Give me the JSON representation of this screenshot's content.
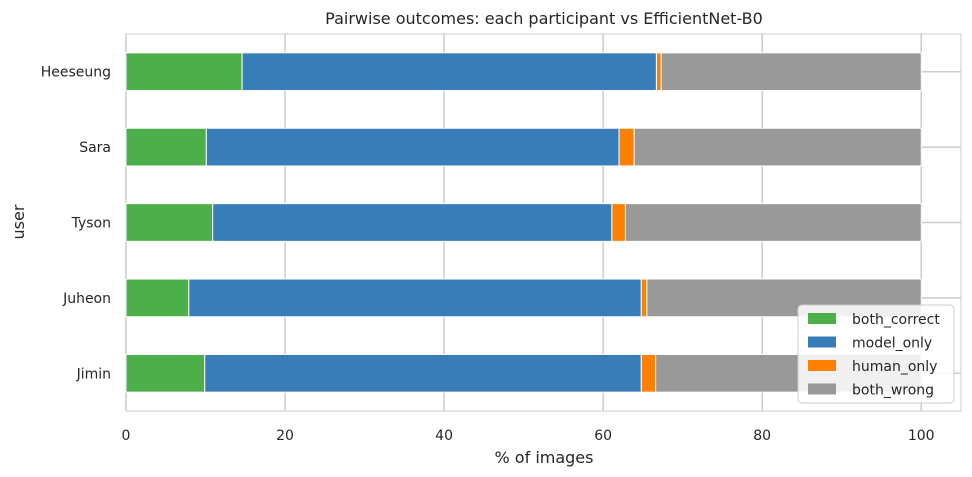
{
  "chart_data": {
    "type": "bar",
    "orientation": "horizontal",
    "stacked": true,
    "title": "Pairwise outcomes: each participant vs EfficientNet-B0",
    "xlabel": "% of images",
    "ylabel": "user",
    "xlim": [
      0,
      105
    ],
    "xticks": [
      0,
      20,
      40,
      60,
      80,
      100
    ],
    "grid": true,
    "legend_position": "bottom-right",
    "categories": [
      "Jimin",
      "Juheon",
      "Tyson",
      "Sara",
      "Heeseung"
    ],
    "series": [
      {
        "name": "both_correct",
        "color": "#4daf4a",
        "values": [
          9.9,
          7.9,
          10.9,
          10.1,
          14.6
        ]
      },
      {
        "name": "model_only",
        "color": "#377eb8",
        "values": [
          54.9,
          56.9,
          50.2,
          51.9,
          52.1
        ]
      },
      {
        "name": "human_only",
        "color": "#ff7f00",
        "values": [
          1.8,
          0.7,
          1.7,
          1.9,
          0.6
        ]
      },
      {
        "name": "both_wrong",
        "color": "#999999",
        "values": [
          33.4,
          34.5,
          37.2,
          36.1,
          32.7
        ]
      }
    ]
  }
}
